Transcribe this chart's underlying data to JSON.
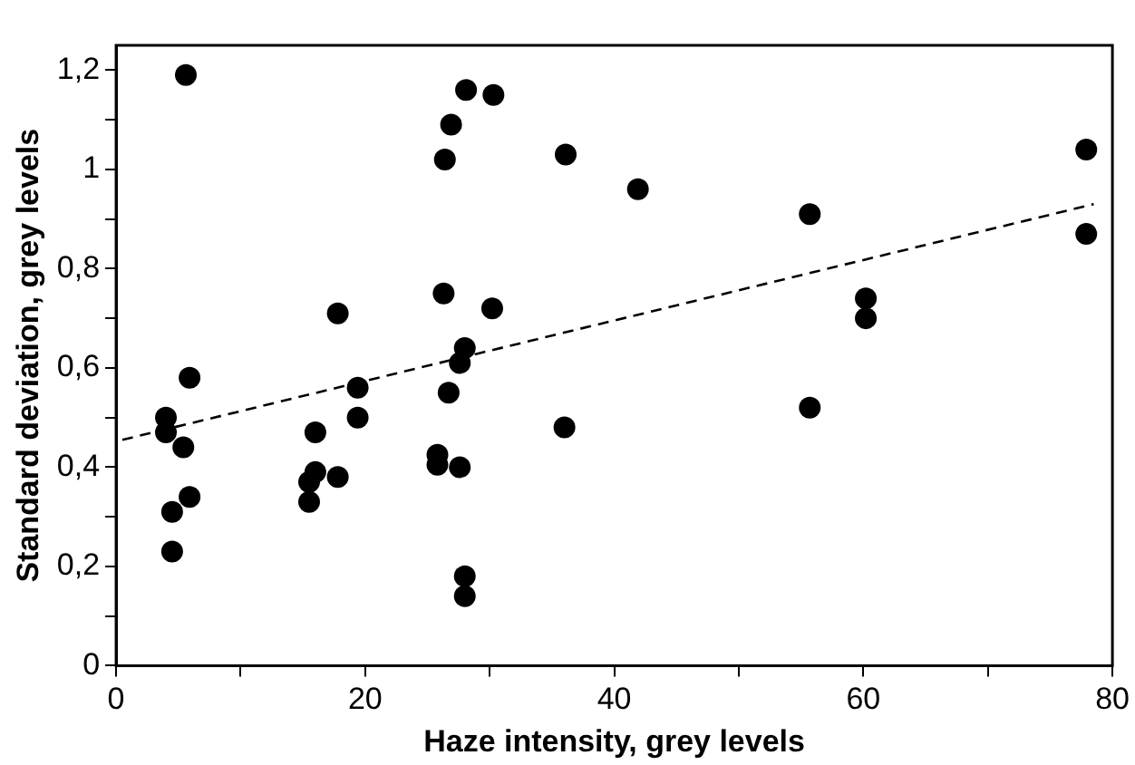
{
  "chart_data": {
    "type": "scatter",
    "xlabel": "Haze intensity, grey levels",
    "ylabel": "Standard deviation, grey levels",
    "marker": "circle",
    "legend": false,
    "grid": false,
    "xlim": [
      0,
      80
    ],
    "xticks": [
      0,
      {
        "value": 10,
        "label": null
      },
      20,
      {
        "value": 30,
        "label": null
      },
      40,
      {
        "value": 50,
        "label": null
      },
      60,
      {
        "value": 70,
        "label": null
      },
      80
    ],
    "ylim": [
      0,
      1.25
    ],
    "yticks": [
      0,
      {
        "value": 0.1,
        "label": null
      },
      {
        "value": 0.2,
        "label": "0,2"
      },
      {
        "value": 0.3,
        "label": null
      },
      {
        "value": 0.4,
        "label": "0,4"
      },
      {
        "value": 0.5,
        "label": null
      },
      {
        "value": 0.6,
        "label": "0,6"
      },
      {
        "value": 0.7,
        "label": null
      },
      {
        "value": 0.8,
        "label": "0,8"
      },
      {
        "value": 0.9,
        "label": null
      },
      1,
      {
        "value": 1.1,
        "label": null
      },
      {
        "value": 1.2,
        "label": "1,2"
      }
    ],
    "series": [
      {
        "type": "scatter",
        "color": "#000000",
        "x": [
          5.6,
          28.1,
          30.3,
          26.9,
          26.4,
          36.1,
          26.3,
          30.2,
          17.8,
          28.0,
          27.6,
          5.9,
          19.4,
          26.7,
          4.0,
          4.0,
          19.4,
          16.0,
          36.0,
          5.4,
          25.8,
          25.8,
          27.6,
          16.0,
          15.5,
          17.8,
          5.9,
          4.5,
          15.5,
          4.5,
          28.0,
          28.0,
          41.9,
          55.7,
          55.7,
          60.2,
          60.2,
          77.9,
          77.9
        ],
        "values": [
          1.19,
          1.16,
          1.15,
          1.09,
          1.02,
          1.03,
          0.75,
          0.72,
          0.71,
          0.64,
          0.61,
          0.58,
          0.56,
          0.55,
          0.5,
          0.47,
          0.5,
          0.47,
          0.48,
          0.44,
          0.425,
          0.405,
          0.4,
          0.39,
          0.37,
          0.38,
          0.34,
          0.31,
          0.33,
          0.23,
          0.18,
          0.14,
          0.96,
          0.91,
          0.52,
          0.74,
          0.7,
          1.04,
          0.87
        ]
      },
      {
        "type": "line",
        "color": "#000000",
        "line_style": "dashed",
        "marker": "none",
        "x": [
          0.5,
          78.5
        ],
        "values": [
          0.455,
          0.93
        ]
      }
    ]
  }
}
